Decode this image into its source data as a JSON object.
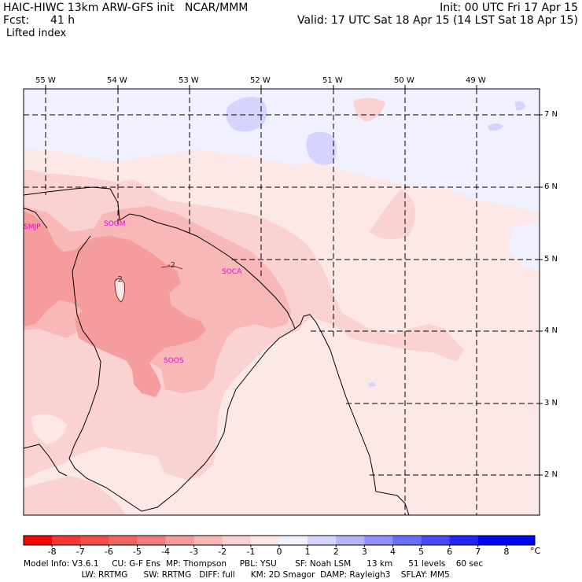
{
  "header": {
    "model": "HAIC-HIWC 13km ARW-GFS init   NCAR/MMM",
    "init": "Init: 00 UTC Fri 17 Apr 15",
    "fcst_label": "Fcst:",
    "fcst_value": "41 h",
    "valid": "Valid: 17 UTC Sat 18 Apr 15 (14 LST Sat 18 Apr 15)",
    "field": "Lifted index"
  },
  "map": {
    "lon_labels": [
      "55 W",
      "54 W",
      "53 W",
      "52 W",
      "51 W",
      "50 W",
      "49 W"
    ],
    "lat_labels": [
      "7 N",
      "6 N",
      "5 N",
      "4 N",
      "3 N",
      "2 N"
    ],
    "stations": [
      "SMJP",
      "SOGM",
      "SOCA",
      "SOOS"
    ],
    "contour_labels": [
      "-2",
      "-2"
    ],
    "background_color": "#fde8e8"
  },
  "colorbar": {
    "unit": "°C",
    "labels": [
      "-8",
      "-7",
      "-6",
      "-5",
      "-4",
      "-3",
      "-2",
      "-1",
      "0",
      "1",
      "2",
      "3",
      "4",
      "5",
      "6",
      "7",
      "8"
    ],
    "colors": [
      "#ff0000",
      "#fc3636",
      "#f74c4c",
      "#f26363",
      "#f07c7c",
      "#f59c9c",
      "#f8b8b8",
      "#fbd2d2",
      "#fde8e8",
      "#f0f0ff",
      "#d4d4ff",
      "#b4b4ff",
      "#9090ff",
      "#6c6cff",
      "#4848ff",
      "#2424ff",
      "#0000ff"
    ]
  },
  "footer": {
    "line1": "Model Info: V3.6.1     CU: G-F Ens  MP: Thompson     PBL: YSU       SF: Noah LSM      13 km      51 levels    60 sec",
    "line2": "                               LW: RRTMG      SW: RRTMG   DIFF: full      KM: 2D Smagor  DAMP: Rayleigh3    SFLAY: MM5"
  }
}
